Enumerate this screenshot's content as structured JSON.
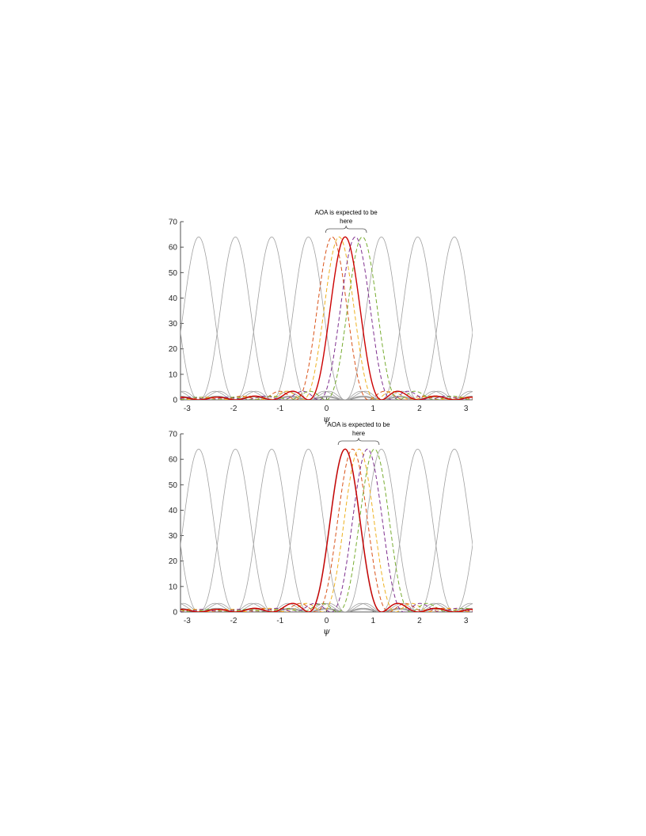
{
  "chart_data": [
    {
      "type": "line",
      "title": "",
      "xlabel": "ψ",
      "ylabel": "",
      "xlim": [
        -3.1416,
        3.1416
      ],
      "ylim": [
        0,
        70
      ],
      "xticks": [
        -3,
        -2,
        -1,
        0,
        1,
        2,
        3
      ],
      "yticks": [
        0,
        10,
        20,
        30,
        40,
        50,
        60,
        70
      ],
      "xtick_labels": [
        "-3",
        "-2",
        "-1",
        "0",
        "1",
        "2",
        "3"
      ],
      "ytick_labels": [
        "0",
        "10",
        "20",
        "30",
        "40",
        "50",
        "60",
        "70"
      ],
      "grid": false,
      "peak": 64,
      "annotation": {
        "lines": [
          "AOA is expected to be",
          "here"
        ],
        "bracket_x": [
          -0.02,
          0.86
        ]
      },
      "background_beams": {
        "color": "#a0a0a0",
        "centers": [
          -2.75,
          -1.96,
          -1.18,
          -0.39,
          1.18,
          1.96,
          2.75
        ]
      },
      "series": [
        {
          "center": 0.12,
          "color": "#d95319",
          "style": "dashed"
        },
        {
          "center": 0.27,
          "color": "#edb120",
          "style": "dashed"
        },
        {
          "center": 0.62,
          "color": "#7e2f8e",
          "style": "dashed"
        },
        {
          "center": 0.77,
          "color": "#77ac30",
          "style": "dashed"
        },
        {
          "center": 0.4,
          "color": "#cc0000",
          "style": "solid"
        }
      ]
    },
    {
      "type": "line",
      "title": "",
      "xlabel": "ψ",
      "ylabel": "",
      "xlim": [
        -3.1416,
        3.1416
      ],
      "ylim": [
        0,
        70
      ],
      "xticks": [
        -3,
        -2,
        -1,
        0,
        1,
        2,
        3
      ],
      "yticks": [
        0,
        10,
        20,
        30,
        40,
        50,
        60,
        70
      ],
      "xtick_labels": [
        "-3",
        "-2",
        "-1",
        "0",
        "1",
        "2",
        "3"
      ],
      "ytick_labels": [
        "0",
        "10",
        "20",
        "30",
        "40",
        "50",
        "60",
        "70"
      ],
      "grid": false,
      "peak": 64,
      "annotation": {
        "lines": [
          "AOA is expected to be",
          "here"
        ],
        "bracket_x": [
          0.25,
          1.13
        ]
      },
      "background_beams": {
        "color": "#a0a0a0",
        "centers": [
          -2.75,
          -1.96,
          -1.18,
          -0.39,
          0.39,
          1.18,
          1.96,
          2.75
        ]
      },
      "series": [
        {
          "center": 0.56,
          "color": "#d95319",
          "style": "dashed"
        },
        {
          "center": 0.7,
          "color": "#edb120",
          "style": "dashed"
        },
        {
          "center": 0.88,
          "color": "#7e2f8e",
          "style": "dashed"
        },
        {
          "center": 1.03,
          "color": "#77ac30",
          "style": "dashed"
        },
        {
          "center": 0.4,
          "color": "#cc0000",
          "style": "solid"
        }
      ]
    }
  ]
}
